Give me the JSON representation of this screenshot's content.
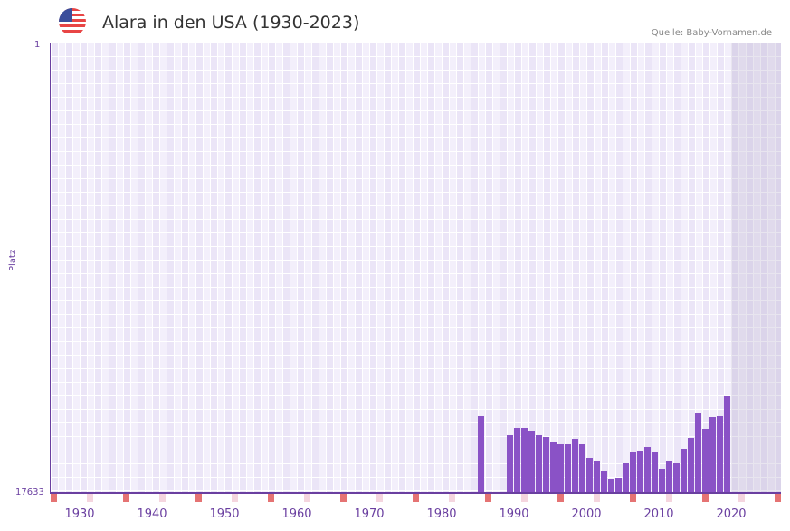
{
  "header": {
    "flag_icon": "us-flag-icon",
    "title": "Alara in den USA (1930-2023)",
    "source": "Quelle: Baby-Vornamen.de"
  },
  "chart_data": {
    "type": "bar",
    "title": "Alara in den USA (1930-2023)",
    "xlabel": "",
    "ylabel": "Platz",
    "y_inverted": true,
    "ylim": [
      1,
      17633
    ],
    "y_ticks": [
      "1",
      "17633"
    ],
    "x_ticks": [
      "1930",
      "1940",
      "1950",
      "1960",
      "1970",
      "1980",
      "1990",
      "2000",
      "2010",
      "2020"
    ],
    "grid": true,
    "legend": null,
    "x": [
      1987,
      1991,
      1992,
      1993,
      1994,
      1995,
      1996,
      1997,
      1998,
      1999,
      2000,
      2001,
      2002,
      2003,
      2004,
      2005,
      2006,
      2007,
      2008,
      2009,
      2010,
      2011,
      2012,
      2013,
      2014,
      2015,
      2016,
      2017,
      2018,
      2019,
      2020,
      2021
    ],
    "values": [
      14601,
      15349,
      15064,
      15064,
      15206,
      15349,
      15420,
      15633,
      15705,
      15705,
      15491,
      15705,
      16239,
      16382,
      16774,
      17059,
      17024,
      16454,
      16026,
      15990,
      15812,
      16026,
      16667,
      16382,
      16454,
      15883,
      15455,
      14493,
      15099,
      14636,
      14601,
      13817
    ],
    "colors": {
      "bar": "#8a52c6",
      "axis": "#6a3fa0",
      "decade_marker": "#e57373",
      "half_decade_marker": "#f5d5de"
    }
  },
  "axis": {
    "y_title": "Platz",
    "y_top": "1",
    "y_bottom": "17633",
    "x_labels": [
      "1930",
      "1940",
      "1950",
      "1960",
      "1970",
      "1980",
      "1990",
      "2000",
      "2010",
      "2020"
    ]
  }
}
